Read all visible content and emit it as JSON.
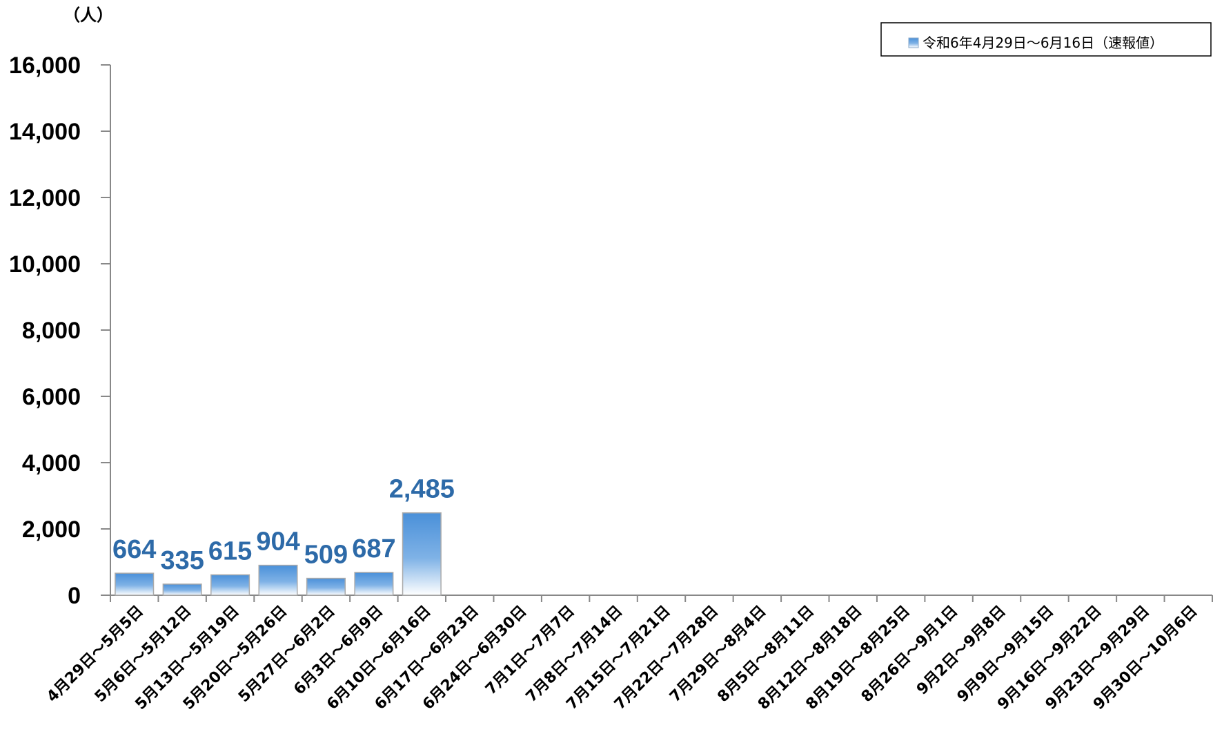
{
  "chart_data": {
    "type": "bar",
    "unit_label": "（人）",
    "categories": [
      "4月29日～5月5日",
      "5月6日～5月12日",
      "5月13日～5月19日",
      "5月20日～5月26日",
      "5月27日～6月2日",
      "6月3日～6月9日",
      "6月10日～6月16日",
      "6月17日～6月23日",
      "6月24日～6月30日",
      "7月1日～7月7日",
      "7月8日～7月14日",
      "7月15日～7月21日",
      "7月22日～7月28日",
      "7月29日～8月4日",
      "8月5日～8月11日",
      "8月12日～8月18日",
      "8月19日～8月25日",
      "8月26日～9月1日",
      "9月2日～9月8日",
      "9月9日～9月15日",
      "9月16日～9月22日",
      "9月23日～9月29日",
      "9月30日～10月6日"
    ],
    "series": [
      {
        "name": "令和6年4月29日～6月16日（速報値）",
        "values": [
          664,
          335,
          615,
          904,
          509,
          687,
          2485,
          null,
          null,
          null,
          null,
          null,
          null,
          null,
          null,
          null,
          null,
          null,
          null,
          null,
          null,
          null,
          null
        ],
        "data_labels": [
          "664",
          "335",
          "615",
          "904",
          "509",
          "687",
          "2,485"
        ]
      }
    ],
    "ylim": [
      0,
      16000
    ],
    "yticks": [
      0,
      2000,
      4000,
      6000,
      8000,
      10000,
      12000,
      14000,
      16000
    ],
    "ytick_labels": [
      "0",
      "2,000",
      "4,000",
      "6,000",
      "8,000",
      "10,000",
      "12,000",
      "14,000",
      "16,000"
    ],
    "grid": false,
    "legend_position": "top-right",
    "colors": {
      "bar_top": "#4a90d9",
      "bar_bottom": "#ffffff",
      "bar_border": "#aaaaaa",
      "data_label": "#2d6aa8"
    }
  }
}
